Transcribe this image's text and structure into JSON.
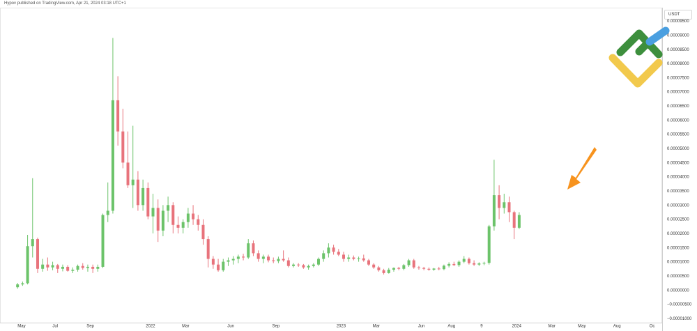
{
  "header": {
    "publisher": "Hypov published on TradingView.com, Apr 21, 2024 03:18 UTC+1"
  },
  "price_axis": {
    "currency": "USDT"
  },
  "colors": {
    "up": "#6cc36a",
    "down": "#e8737c",
    "arrow": "#f7931e",
    "axis_text": "#333333",
    "logo_green": "#3d8f3d",
    "logo_yellow": "#f2c94c",
    "logo_blue": "#4a9fe0"
  },
  "chart_data": {
    "type": "candlestick",
    "y_ticks": [
      "0.00009500",
      "0.00009000",
      "0.00008500",
      "0.00008000",
      "0.00007500",
      "0.00007000",
      "0.00006500",
      "0.00006000",
      "0.00005500",
      "0.00005000",
      "0.00004500",
      "0.00004000",
      "0.00003500",
      "0.00003000",
      "0.00002500",
      "0.00002000",
      "0.00001500",
      "0.00001000",
      "0.00000500",
      "0.00000000",
      "−0.00000500",
      "−0.00001000"
    ],
    "ylim": [
      -1.15e-05,
      9.97e-05
    ],
    "x_ticks": [
      {
        "label": "May",
        "x": 0.8
      },
      {
        "label": "Jul",
        "x": 7.5
      },
      {
        "label": "Sep",
        "x": 14.5
      },
      {
        "label": "2022",
        "x": 26.5
      },
      {
        "label": "Mar",
        "x": 33.5
      },
      {
        "label": "Jun",
        "x": 42.5
      },
      {
        "label": "Sep",
        "x": 51.5
      },
      {
        "label": "2023",
        "x": 64.5
      },
      {
        "label": "Mar",
        "x": 71.5
      },
      {
        "label": "Jun",
        "x": 80.5
      },
      {
        "label": "Aug",
        "x": 86.5
      },
      {
        "label": "9",
        "x": 92.5
      },
      {
        "label": "2024",
        "x": 99.5
      },
      {
        "label": "Mar",
        "x": 106.5
      },
      {
        "label": "May",
        "x": 112.5
      },
      {
        "label": "Aug",
        "x": 119.5
      },
      {
        "label": "Oc",
        "x": 126.5
      }
    ],
    "x_range": [
      -3.5,
      128.5
    ],
    "candles": [
      [
        1e-06,
        2.5e-06,
        5e-07,
        2e-06
      ],
      [
        2e-06,
        3e-06,
        1.5e-06,
        2.4e-06
      ],
      [
        2.4e-06,
        1.95e-05,
        2e-06,
        1.55e-05
      ],
      [
        1.55e-05,
        3.95e-05,
        1.15e-05,
        1.8e-05
      ],
      [
        1.8e-05,
        1.85e-05,
        6e-06,
        7.5e-06
      ],
      [
        7.5e-06,
        1.1e-05,
        6.5e-06,
        9e-06
      ],
      [
        9e-06,
        1.15e-05,
        6.8e-06,
        8e-06
      ],
      [
        8e-06,
        1e-05,
        7e-06,
        8.8e-06
      ],
      [
        8.8e-06,
        9.2e-06,
        6e-06,
        7.5e-06
      ],
      [
        7.5e-06,
        9e-06,
        6.6e-06,
        8.2e-06
      ],
      [
        8.2e-06,
        8.8e-06,
        6.5e-06,
        6.8e-06
      ],
      [
        6.8e-06,
        8e-06,
        6e-06,
        7.2e-06
      ],
      [
        7.2e-06,
        9e-06,
        6.5e-06,
        8.5e-06
      ],
      [
        8.5e-06,
        9.5e-06,
        7.2e-06,
        7.8e-06
      ],
      [
        7.8e-06,
        9e-06,
        6.5e-06,
        8.2e-06
      ],
      [
        8.2e-06,
        9e-06,
        6e-06,
        7.5e-06
      ],
      [
        7.5e-06,
        9e-06,
        6.5e-06,
        8.2e-06
      ],
      [
        8.2e-06,
        2.7e-05,
        7.8e-06,
        2.65e-05
      ],
      [
        2.65e-05,
        3.8e-05,
        2.4e-05,
        2.8e-05
      ],
      [
        2.8e-05,
        8.9e-05,
        2.7e-05,
        6.7e-05
      ],
      [
        6.7e-05,
        7.55e-05,
        5.1e-05,
        5.6e-05
      ],
      [
        5.6e-05,
        6.4e-05,
        4.3e-05,
        4.5e-05
      ],
      [
        4.5e-05,
        5.6e-05,
        3.6e-05,
        3.7e-05
      ],
      [
        3.7e-05,
        5.8e-05,
        2.9e-05,
        3.9e-05
      ],
      [
        3.9e-05,
        4.2e-05,
        2.8e-05,
        3e-05
      ],
      [
        3e-05,
        3.9e-05,
        2.8e-05,
        3.6e-05
      ],
      [
        3.6e-05,
        3.8e-05,
        2.5e-05,
        2.6e-05
      ],
      [
        2.6e-05,
        3.4e-05,
        2e-05,
        2.9e-05
      ],
      [
        2.9e-05,
        3.2e-05,
        1.7e-05,
        2.1e-05
      ],
      [
        2.1e-05,
        3e-05,
        1.9e-05,
        2.8e-05
      ],
      [
        2.8e-05,
        3.3e-05,
        2.4e-05,
        3e-05
      ],
      [
        3e-05,
        3.1e-05,
        2e-05,
        2.3e-05
      ],
      [
        2.3e-05,
        2.6e-05,
        2e-05,
        2.2e-05
      ],
      [
        2.2e-05,
        2.5e-05,
        2e-05,
        2.4e-05
      ],
      [
        2.4e-05,
        2.9e-05,
        2.2e-05,
        2.7e-05
      ],
      [
        2.7e-05,
        3e-05,
        2.3e-05,
        2.5e-05
      ],
      [
        2.5e-05,
        2.65e-05,
        2.1e-05,
        2.3e-05
      ],
      [
        2.3e-05,
        2.5e-05,
        1.6e-05,
        1.8e-05
      ],
      [
        1.8e-05,
        1.9e-05,
        8e-06,
        1.1e-05
      ],
      [
        1.1e-05,
        1.2e-05,
        7.5e-06,
        9e-06
      ],
      [
        9e-06,
        1.1e-05,
        6.5e-06,
        7e-06
      ],
      [
        7e-06,
        1.1e-05,
        6.5e-06,
        1e-05
      ],
      [
        1e-05,
        1.15e-05,
        8.5e-06,
        1.05e-05
      ],
      [
        1.05e-05,
        1.2e-05,
        9e-06,
        1.1e-05
      ],
      [
        1.1e-05,
        1.25e-05,
        9.5e-06,
        1.18e-05
      ],
      [
        1.18e-05,
        1.28e-05,
        1.05e-05,
        1.15e-05
      ],
      [
        1.15e-05,
        1.8e-05,
        1.1e-05,
        1.65e-05
      ],
      [
        1.65e-05,
        1.75e-05,
        1.2e-05,
        1.3e-05
      ],
      [
        1.3e-05,
        1.4e-05,
        1e-05,
        1.1e-05
      ],
      [
        1.1e-05,
        1.25e-05,
        9.5e-06,
        1.18e-05
      ],
      [
        1.18e-05,
        1.25e-05,
        9.8e-06,
        1.05e-05
      ],
      [
        1.05e-05,
        1.15e-05,
        9.5e-06,
        1.02e-05
      ],
      [
        1.02e-05,
        1.18e-05,
        9.5e-06,
        1.1e-05
      ],
      [
        1.1e-05,
        1.4e-05,
        1e-05,
        1.05e-05
      ],
      [
        1.05e-05,
        1.15e-05,
        8e-06,
        8.5e-06
      ],
      [
        8.5e-06,
        9.5e-06,
        8e-06,
        9e-06
      ],
      [
        9e-06,
        9.5e-06,
        8.2e-06,
        8.8e-06
      ],
      [
        8.8e-06,
        9.2e-06,
        7.5e-06,
        8e-06
      ],
      [
        8e-06,
        9e-06,
        7.2e-06,
        8.5e-06
      ],
      [
        8.5e-06,
        9.5e-06,
        8e-06,
        9e-06
      ],
      [
        9e-06,
        1.15e-05,
        8.5e-06,
        1.1e-05
      ],
      [
        1.1e-05,
        1.4e-05,
        1e-05,
        1.3e-05
      ],
      [
        1.3e-05,
        1.65e-05,
        1.15e-05,
        1.5e-05
      ],
      [
        1.5e-05,
        1.6e-05,
        1.25e-05,
        1.35e-05
      ],
      [
        1.35e-05,
        1.45e-05,
        1.2e-05,
        1.25e-05
      ],
      [
        1.25e-05,
        1.35e-05,
        1e-05,
        1.1e-05
      ],
      [
        1.1e-05,
        1.25e-05,
        1e-05,
        1.15e-05
      ],
      [
        1.15e-05,
        1.22e-05,
        1.05e-05,
        1.1e-05
      ],
      [
        1.1e-05,
        1.18e-05,
        1e-05,
        1.12e-05
      ],
      [
        1.12e-05,
        1.25e-05,
        1e-05,
        1.05e-05
      ],
      [
        1.05e-05,
        1.1e-05,
        8.5e-06,
        9e-06
      ],
      [
        9e-06,
        9.5e-06,
        7.5e-06,
        8e-06
      ],
      [
        8e-06,
        8.5e-06,
        6.5e-06,
        7e-06
      ],
      [
        7e-06,
        7.5e-06,
        5.5e-06,
        6e-06
      ],
      [
        6e-06,
        7.8e-06,
        5.8e-06,
        7.2e-06
      ],
      [
        7.2e-06,
        8e-06,
        6.5e-06,
        7.8e-06
      ],
      [
        7.8e-06,
        8.2e-06,
        7e-06,
        7.5e-06
      ],
      [
        7.5e-06,
        9.2e-06,
        7e-06,
        8.8e-06
      ],
      [
        8.8e-06,
        1.1e-05,
        8.2e-06,
        1.05e-05
      ],
      [
        1.05e-05,
        1.1e-05,
        7.5e-06,
        8e-06
      ],
      [
        8e-06,
        8.5e-06,
        7.2e-06,
        7.8e-06
      ],
      [
        7.8e-06,
        8.2e-06,
        7e-06,
        7.5e-06
      ],
      [
        7.5e-06,
        8e-06,
        6.8e-06,
        7.2e-06
      ],
      [
        7.2e-06,
        7.8e-06,
        6.8e-06,
        7.6e-06
      ],
      [
        7.6e-06,
        8.2e-06,
        7e-06,
        7.4e-06
      ],
      [
        7.4e-06,
        9e-06,
        7e-06,
        8.6e-06
      ],
      [
        8.6e-06,
        9.8e-06,
        8e-06,
        9.2e-06
      ],
      [
        9.2e-06,
        1e-05,
        8.5e-06,
        8.8e-06
      ],
      [
        8.8e-06,
        1.05e-05,
        8.2e-06,
        1e-05
      ],
      [
        1e-05,
        1.2e-05,
        9.5e-06,
        1.1e-05
      ],
      [
        1.1e-05,
        1.15e-05,
        9e-06,
        9.5e-06
      ],
      [
        9.5e-06,
        1.05e-05,
        8.5e-06,
        9e-06
      ],
      [
        9e-06,
        9.8e-06,
        8.5e-06,
        9.4e-06
      ],
      [
        9.4e-06,
        1e-05,
        8.8e-06,
        9.6e-06
      ],
      [
        9.6e-06,
        2.3e-05,
        9e-06,
        2.25e-05
      ],
      [
        2.25e-05,
        4.6e-05,
        2.1e-05,
        3.35e-05
      ],
      [
        3.35e-05,
        3.7e-05,
        2.5e-05,
        2.9e-05
      ],
      [
        2.9e-05,
        3.4e-05,
        2.7e-05,
        3.1e-05
      ],
      [
        3.1e-05,
        3.3e-05,
        2.4e-05,
        2.75e-05
      ],
      [
        2.75e-05,
        2.8e-05,
        1.8e-05,
        2.2e-05
      ],
      [
        2.2e-05,
        2.75e-05,
        2.15e-05,
        2.65e-05
      ]
    ]
  }
}
